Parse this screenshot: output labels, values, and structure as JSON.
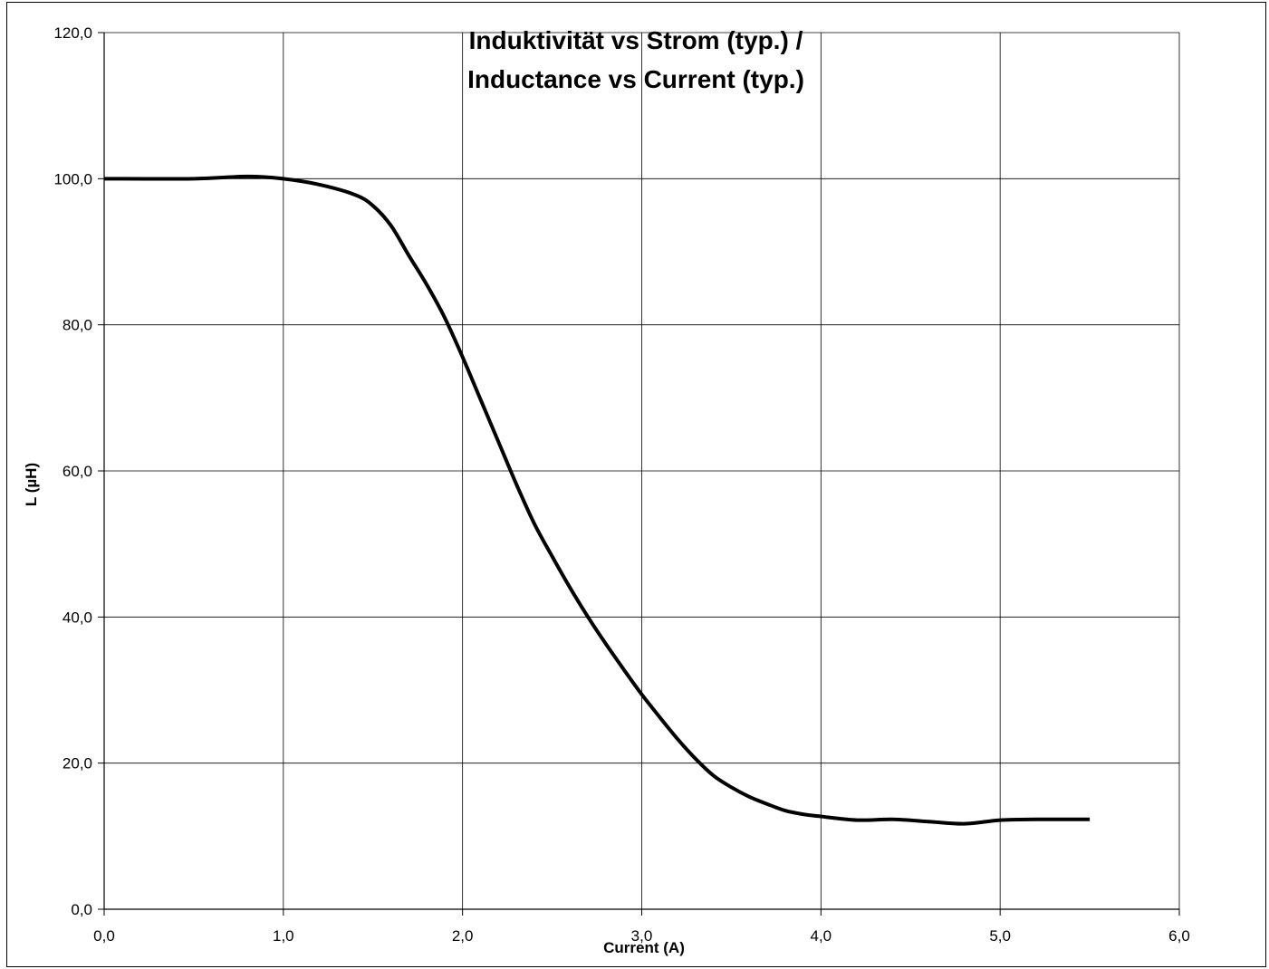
{
  "chart_data": {
    "type": "line",
    "title_lines": [
      "Induktivität vs Strom (typ.) /",
      "Inductance vs Current (typ.)"
    ],
    "xlabel": "Current (A)",
    "ylabel": "L (µH)",
    "xlim": [
      0,
      6
    ],
    "ylim": [
      0,
      120
    ],
    "grid": true,
    "x_ticks": [
      "0,0",
      "1,0",
      "2,0",
      "3,0",
      "4,0",
      "5,0",
      "6,0"
    ],
    "y_ticks": [
      "0,0",
      "20,0",
      "40,0",
      "60,0",
      "80,0",
      "100,0",
      "120,0"
    ],
    "series": [
      {
        "color": "#000000",
        "x": [
          0.0,
          0.5,
          0.8,
          1.0,
          1.2,
          1.4,
          1.5,
          1.6,
          1.7,
          1.8,
          1.9,
          2.0,
          2.1,
          2.2,
          2.3,
          2.4,
          2.5,
          2.6,
          2.7,
          2.8,
          2.9,
          3.0,
          3.1,
          3.2,
          3.3,
          3.4,
          3.5,
          3.6,
          3.7,
          3.8,
          3.9,
          4.0,
          4.2,
          4.4,
          4.6,
          4.8,
          5.0,
          5.2,
          5.5
        ],
        "y": [
          100.0,
          100.0,
          100.3,
          100.0,
          99.2,
          97.8,
          96.3,
          93.6,
          89.5,
          85.5,
          81.0,
          75.6,
          69.8,
          64.0,
          58.2,
          52.8,
          48.3,
          44.0,
          40.0,
          36.3,
          32.8,
          29.4,
          26.3,
          23.3,
          20.6,
          18.3,
          16.7,
          15.4,
          14.4,
          13.5,
          13.0,
          12.7,
          12.2,
          12.3,
          12.0,
          11.7,
          12.2,
          12.3,
          12.3
        ]
      }
    ]
  }
}
